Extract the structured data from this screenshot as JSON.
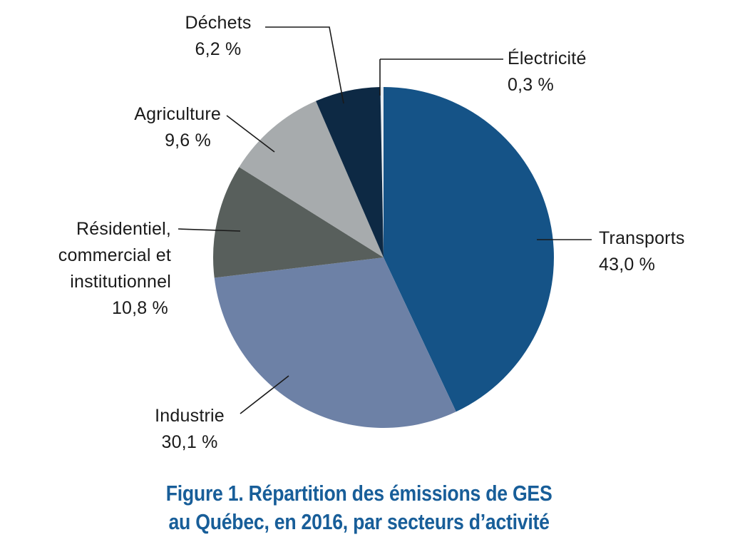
{
  "chart_data": {
    "type": "pie",
    "title": "Figure 1. Répartition des émissions de GES au Québec, en 2016, par secteurs d’activité",
    "unit": "%",
    "start_angle_deg": 0,
    "direction": "clockwise",
    "slices": [
      {
        "key": "electricite",
        "label": "Électricité",
        "value": 0.3,
        "value_label": "0,3 %",
        "color": "#e6ebf0"
      },
      {
        "key": "transports",
        "label": "Transports",
        "value": 43.0,
        "value_label": "43,0 %",
        "color": "#155387"
      },
      {
        "key": "industrie",
        "label": "Industrie",
        "value": 30.1,
        "value_label": "30,1 %",
        "color": "#6d81a6"
      },
      {
        "key": "residentiel",
        "label": "Résidentiel, commercial et institutionnel",
        "value": 10.8,
        "value_label": "10,8 %",
        "color": "#585f5c"
      },
      {
        "key": "agriculture",
        "label": "Agriculture",
        "value": 9.6,
        "value_label": "9,6 %",
        "color": "#a7abad"
      },
      {
        "key": "dechets",
        "label": "Déchets",
        "value": 6.2,
        "value_label": "6,2 %",
        "color": "#0d2944"
      }
    ]
  },
  "labels": {
    "dechets": {
      "lines": [
        "Déchets",
        "6,2 %"
      ]
    },
    "electricite": {
      "lines": [
        "Électricité",
        "0,3 %"
      ]
    },
    "agriculture": {
      "lines": [
        "Agriculture",
        "9,6 %"
      ]
    },
    "residentiel": {
      "lines": [
        "Résidentiel,",
        "commercial et",
        "institutionnel",
        "10,8 %"
      ]
    },
    "transports": {
      "lines": [
        "Transports",
        "43,0 %"
      ]
    },
    "industrie": {
      "lines": [
        "Industrie",
        "30,1 %"
      ]
    }
  },
  "caption": {
    "line1": "Figure 1. Répartition des émissions de GES",
    "line2": "au Québec, en 2016, par secteurs d’activité",
    "color": "#185e99"
  }
}
